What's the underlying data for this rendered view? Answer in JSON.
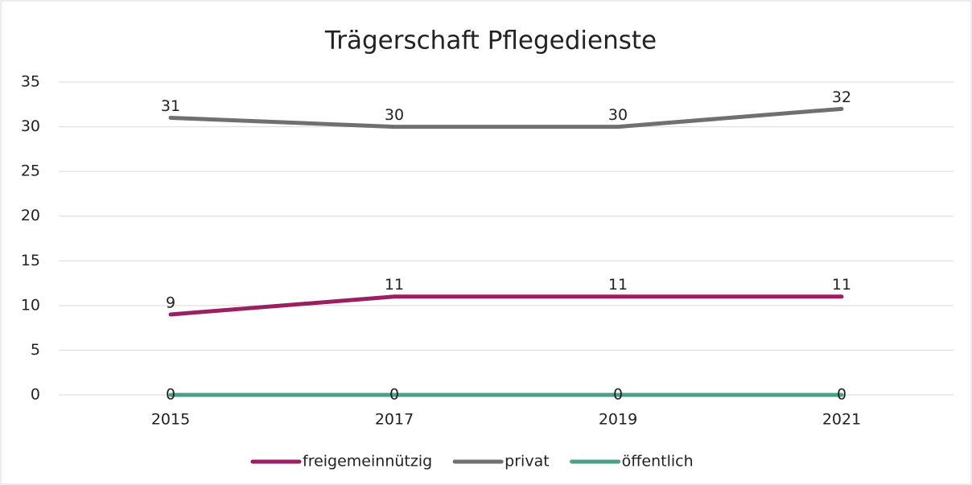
{
  "chart_data": {
    "type": "line",
    "title": "Trägerschaft Pflegedienste",
    "categories": [
      "2015",
      "2017",
      "2019",
      "2021"
    ],
    "series": [
      {
        "name": "freigemeinnützig",
        "color": "#9b1f63",
        "values": [
          9,
          11,
          11,
          11
        ]
      },
      {
        "name": "privat",
        "color": "#707070",
        "values": [
          31,
          30,
          30,
          32
        ]
      },
      {
        "name": "öffentlich",
        "color": "#4aa08a",
        "values": [
          0,
          0,
          0,
          0
        ]
      }
    ],
    "ylim": [
      0,
      35
    ],
    "yticks": [
      0,
      5,
      10,
      15,
      20,
      25,
      30,
      35
    ],
    "grid": true,
    "legend": "bottom"
  }
}
